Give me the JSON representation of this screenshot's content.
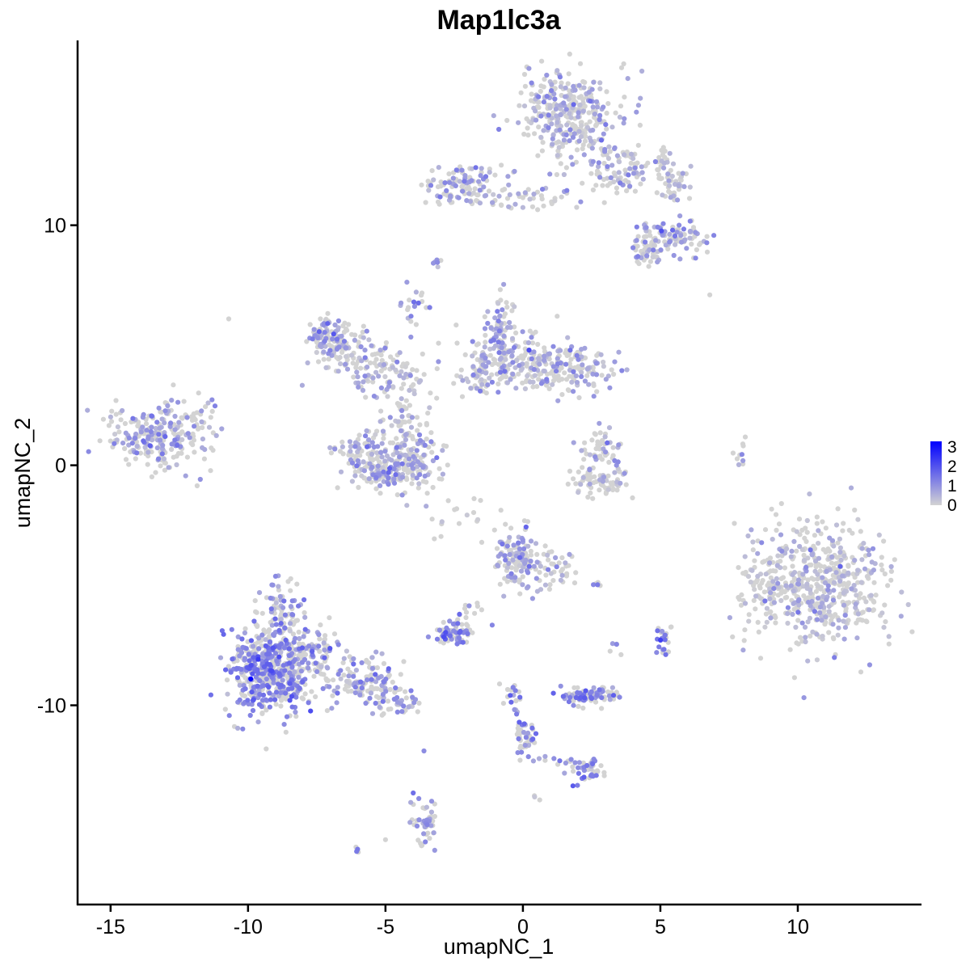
{
  "chart_data": {
    "type": "scatter",
    "title": "Map1lc3a",
    "xlabel": "umapNC_1",
    "ylabel": "umapNC_2",
    "xlim": [
      -16.2,
      14.5
    ],
    "ylim": [
      -18.3,
      17.7
    ],
    "x_ticks": [
      -15,
      -10,
      -5,
      0,
      5,
      10
    ],
    "x_tick_labels": [
      "-15",
      "-10",
      "-5",
      "0",
      "5",
      "10"
    ],
    "y_ticks": [
      -10,
      0,
      10
    ],
    "y_tick_labels": [
      "-10",
      "0",
      "10"
    ],
    "grid": false,
    "legend": {
      "position": "right",
      "type": "colorbar",
      "min": 0,
      "max": 3,
      "labels": [
        "3",
        "2",
        "1",
        "0"
      ],
      "color_low": "#d3d3d3",
      "color_high": "#0000ff"
    },
    "clusters": [
      {
        "x": 1.7,
        "y": 14.7,
        "sx": 0.9,
        "sy": 0.9,
        "n": 320,
        "expr": 0.55
      },
      {
        "x": 3.6,
        "y": 12.4,
        "sx": 1.1,
        "sy": 0.5,
        "n": 120,
        "expr": 0.55
      },
      {
        "x": -2.1,
        "y": 11.6,
        "sx": 0.8,
        "sy": 0.4,
        "n": 110,
        "expr": 0.7
      },
      {
        "x": 0.2,
        "y": 11.1,
        "sx": 0.9,
        "sy": 0.25,
        "n": 40,
        "expr": 0.5
      },
      {
        "x": 5.5,
        "y": 9.5,
        "sx": 0.55,
        "sy": 0.4,
        "n": 90,
        "expr": 0.8
      },
      {
        "x": 4.5,
        "y": 9.0,
        "sx": 0.35,
        "sy": 0.35,
        "n": 50,
        "expr": 0.8
      },
      {
        "x": 5.5,
        "y": 11.8,
        "sx": 0.3,
        "sy": 0.4,
        "n": 40,
        "expr": 0.6
      },
      {
        "x": -7.2,
        "y": 5.4,
        "sx": 0.35,
        "sy": 0.45,
        "n": 80,
        "expr": 0.8
      },
      {
        "x": -6.2,
        "y": 4.8,
        "sx": 0.7,
        "sy": 0.5,
        "n": 90,
        "expr": 0.45
      },
      {
        "x": -4.9,
        "y": 3.8,
        "sx": 0.8,
        "sy": 0.45,
        "n": 80,
        "expr": 0.55
      },
      {
        "x": -5.7,
        "y": 0.4,
        "sx": 0.5,
        "sy": 0.55,
        "n": 90,
        "expr": 0.75
      },
      {
        "x": -4.7,
        "y": -0.2,
        "sx": 0.7,
        "sy": 0.4,
        "n": 150,
        "expr": 0.75
      },
      {
        "x": -3.9,
        "y": 0.7,
        "sx": 0.45,
        "sy": 0.65,
        "n": 90,
        "expr": 0.7
      },
      {
        "x": -4.5,
        "y": 2.0,
        "sx": 0.35,
        "sy": 0.7,
        "n": 40,
        "expr": 0.3
      },
      {
        "x": -4.0,
        "y": 6.8,
        "sx": 0.25,
        "sy": 0.5,
        "n": 20,
        "expr": 0.9
      },
      {
        "x": -0.9,
        "y": 5.3,
        "sx": 0.5,
        "sy": 0.9,
        "n": 120,
        "expr": 0.8
      },
      {
        "x": 0.2,
        "y": 4.2,
        "sx": 0.9,
        "sy": 0.6,
        "n": 140,
        "expr": 0.5
      },
      {
        "x": 1.9,
        "y": 4.0,
        "sx": 0.7,
        "sy": 0.5,
        "n": 110,
        "expr": 0.6
      },
      {
        "x": -1.7,
        "y": 3.6,
        "sx": 0.4,
        "sy": 0.5,
        "n": 40,
        "expr": 0.45
      },
      {
        "x": 2.7,
        "y": 0.6,
        "sx": 0.4,
        "sy": 0.5,
        "n": 50,
        "expr": 0.7
      },
      {
        "x": 2.8,
        "y": -0.7,
        "sx": 0.6,
        "sy": 0.3,
        "n": 70,
        "expr": 0.3
      },
      {
        "x": -13.3,
        "y": 1.2,
        "sx": 0.85,
        "sy": 0.7,
        "n": 230,
        "expr": 0.8
      },
      {
        "x": -11.7,
        "y": 1.6,
        "sx": 0.3,
        "sy": 0.6,
        "n": 25,
        "expr": 0.7
      },
      {
        "x": 10.7,
        "y": -4.9,
        "sx": 1.3,
        "sy": 1.25,
        "n": 560,
        "expr": 0.35
      },
      {
        "x": 8.5,
        "y": -5.0,
        "sx": 0.4,
        "sy": 0.5,
        "n": 30,
        "expr": 0.2
      },
      {
        "x": 7.9,
        "y": 0.3,
        "sx": 0.12,
        "sy": 0.4,
        "n": 10,
        "expr": 0.8
      },
      {
        "x": -0.3,
        "y": -3.8,
        "sx": 0.4,
        "sy": 0.6,
        "n": 120,
        "expr": 0.8
      },
      {
        "x": 0.9,
        "y": -4.4,
        "sx": 0.6,
        "sy": 0.5,
        "n": 50,
        "expr": 0.5
      },
      {
        "x": -9.1,
        "y": -8.5,
        "sx": 0.8,
        "sy": 0.9,
        "n": 580,
        "expr": 1.2
      },
      {
        "x": -8.8,
        "y": -6.2,
        "sx": 0.4,
        "sy": 0.7,
        "n": 80,
        "expr": 1.0
      },
      {
        "x": -7.3,
        "y": -8.2,
        "sx": 0.4,
        "sy": 0.6,
        "n": 60,
        "expr": 0.7
      },
      {
        "x": -5.7,
        "y": -9.0,
        "sx": 0.7,
        "sy": 0.5,
        "n": 120,
        "expr": 0.85
      },
      {
        "x": -4.5,
        "y": -9.9,
        "sx": 0.5,
        "sy": 0.3,
        "n": 50,
        "expr": 0.85
      },
      {
        "x": -2.5,
        "y": -6.9,
        "sx": 0.3,
        "sy": 0.22,
        "n": 60,
        "expr": 1.35
      },
      {
        "x": -1.9,
        "y": -6.3,
        "sx": 0.25,
        "sy": 0.5,
        "n": 15,
        "expr": 1.1
      },
      {
        "x": 2.4,
        "y": -9.6,
        "sx": 0.5,
        "sy": 0.2,
        "n": 90,
        "expr": 1.1
      },
      {
        "x": 0.1,
        "y": -11.4,
        "sx": 0.2,
        "sy": 0.4,
        "n": 45,
        "expr": 1.2
      },
      {
        "x": -0.4,
        "y": -9.8,
        "sx": 0.15,
        "sy": 0.6,
        "n": 20,
        "expr": 1.1
      },
      {
        "x": 2.3,
        "y": -12.7,
        "sx": 0.3,
        "sy": 0.25,
        "n": 40,
        "expr": 1.2
      },
      {
        "x": 1.4,
        "y": -12.3,
        "sx": 0.5,
        "sy": 0.15,
        "n": 12,
        "expr": 1.1
      },
      {
        "x": 5.1,
        "y": -7.3,
        "sx": 0.15,
        "sy": 0.3,
        "n": 25,
        "expr": 1.4
      },
      {
        "x": -3.6,
        "y": -14.8,
        "sx": 0.22,
        "sy": 0.6,
        "n": 50,
        "expr": 0.8
      },
      {
        "x": -6.0,
        "y": -16.0,
        "sx": 0.08,
        "sy": 0.08,
        "n": 4,
        "expr": 1.0
      },
      {
        "x": -3.1,
        "y": 8.5,
        "sx": 0.1,
        "sy": 0.15,
        "n": 6,
        "expr": 1.0
      },
      {
        "x": 3.4,
        "y": -7.6,
        "sx": 0.1,
        "sy": 0.15,
        "n": 5,
        "expr": 0.9
      },
      {
        "x": 2.7,
        "y": -5.0,
        "sx": 0.15,
        "sy": 0.08,
        "n": 5,
        "expr": 1.0
      },
      {
        "x": 0.5,
        "y": -13.8,
        "sx": 0.08,
        "sy": 0.08,
        "n": 3,
        "expr": 0.9
      },
      {
        "x": -2.1,
        "y": -2.2,
        "sx": 0.9,
        "sy": 0.5,
        "n": 20,
        "expr": 0.1
      }
    ],
    "outliers": [
      {
        "x": -10.7,
        "y": 6.1,
        "expr": 0.0
      },
      {
        "x": 6.8,
        "y": 7.1,
        "expr": 0.0
      },
      {
        "x": -5.0,
        "y": -15.6,
        "expr": 0.0
      },
      {
        "x": -9.9,
        "y": -8.9,
        "expr": 3.0
      },
      {
        "x": -3.6,
        "y": -11.9,
        "expr": 1.0
      },
      {
        "x": -3.4,
        "y": 2.4,
        "expr": 0.3
      }
    ]
  }
}
